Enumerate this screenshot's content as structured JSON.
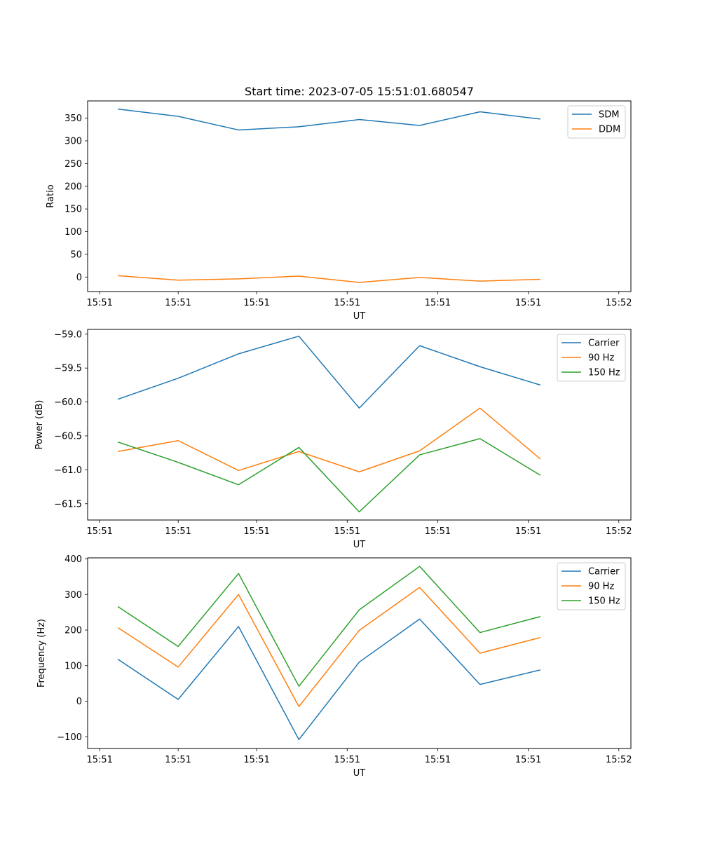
{
  "chart_data": [
    {
      "type": "line",
      "title": "Start time: 2023-07-05 15:51:01.680547",
      "xlabel": "UT",
      "ylabel": "Ratio",
      "x_index": [
        0,
        1,
        2,
        3,
        4,
        5,
        6,
        7
      ],
      "xlim": [
        -0.5,
        8.5
      ],
      "x_ticks": [
        {
          "pos": -0.3,
          "label": "15:51"
        },
        {
          "pos": 1.0,
          "label": "15:51"
        },
        {
          "pos": 2.3,
          "label": "15:51"
        },
        {
          "pos": 3.8,
          "label": "15:51"
        },
        {
          "pos": 5.3,
          "label": "15:51"
        },
        {
          "pos": 6.8,
          "label": "15:51"
        },
        {
          "pos": 8.3,
          "label": "15:52"
        }
      ],
      "ylim": [
        -32,
        388
      ],
      "y_ticks": [
        0,
        50,
        100,
        150,
        200,
        250,
        300,
        350
      ],
      "legend_position": "top-right",
      "series": [
        {
          "name": "SDM",
          "color": "#1f77b4",
          "values": [
            370,
            354,
            324,
            331,
            347,
            334,
            364,
            348
          ]
        },
        {
          "name": "DDM",
          "color": "#ff7f0e",
          "values": [
            3,
            -7,
            -4,
            2,
            -12,
            -1,
            -9,
            -5
          ]
        }
      ]
    },
    {
      "type": "line",
      "title": "",
      "xlabel": "UT",
      "ylabel": "Power (dB)",
      "x_index": [
        0,
        1,
        2,
        3,
        4,
        5,
        6,
        7
      ],
      "xlim": [
        -0.5,
        8.5
      ],
      "x_ticks": [
        {
          "pos": -0.3,
          "label": "15:51"
        },
        {
          "pos": 1.0,
          "label": "15:51"
        },
        {
          "pos": 2.3,
          "label": "15:51"
        },
        {
          "pos": 3.8,
          "label": "15:51"
        },
        {
          "pos": 5.3,
          "label": "15:51"
        },
        {
          "pos": 6.8,
          "label": "15:51"
        },
        {
          "pos": 8.3,
          "label": "15:52"
        }
      ],
      "ylim": [
        -61.74,
        -58.93
      ],
      "y_ticks": [
        -61.5,
        -61.0,
        -60.5,
        -60.0,
        -59.5,
        -59.0
      ],
      "y_tick_labels": [
        "−61.5",
        "−61.0",
        "−60.5",
        "−60.0",
        "−59.5",
        "−59.0"
      ],
      "legend_position": "top-right",
      "series": [
        {
          "name": "Carrier",
          "color": "#1f77b4",
          "values": [
            -59.96,
            -59.65,
            -59.29,
            -59.03,
            -60.09,
            -59.17,
            -59.48,
            -59.75
          ]
        },
        {
          "name": "90 Hz",
          "color": "#ff7f0e",
          "values": [
            -60.73,
            -60.57,
            -61.01,
            -60.73,
            -61.03,
            -60.72,
            -60.09,
            -60.84
          ]
        },
        {
          "name": "150 Hz",
          "color": "#2ca02c",
          "values": [
            -60.59,
            -60.89,
            -61.22,
            -60.67,
            -61.62,
            -60.78,
            -60.54,
            -61.08
          ]
        }
      ]
    },
    {
      "type": "line",
      "title": "",
      "xlabel": "UT",
      "ylabel": "Frequency (Hz)",
      "x_index": [
        0,
        1,
        2,
        3,
        4,
        5,
        6,
        7
      ],
      "xlim": [
        -0.5,
        8.5
      ],
      "x_ticks": [
        {
          "pos": -0.3,
          "label": "15:51"
        },
        {
          "pos": 1.0,
          "label": "15:51"
        },
        {
          "pos": 2.3,
          "label": "15:51"
        },
        {
          "pos": 3.8,
          "label": "15:51"
        },
        {
          "pos": 5.3,
          "label": "15:51"
        },
        {
          "pos": 6.8,
          "label": "15:51"
        },
        {
          "pos": 8.3,
          "label": "15:52"
        }
      ],
      "ylim": [
        -133,
        403
      ],
      "y_ticks": [
        -100,
        0,
        100,
        200,
        300,
        400
      ],
      "y_tick_labels": [
        "−100",
        "0",
        "100",
        "200",
        "300",
        "400"
      ],
      "legend_position": "top-right",
      "series": [
        {
          "name": "Carrier",
          "color": "#1f77b4",
          "values": [
            118,
            5,
            210,
            -108,
            110,
            231,
            47,
            88
          ]
        },
        {
          "name": "90 Hz",
          "color": "#ff7f0e",
          "values": [
            207,
            96,
            300,
            -15,
            199,
            320,
            135,
            179
          ]
        },
        {
          "name": "150 Hz",
          "color": "#2ca02c",
          "values": [
            266,
            154,
            359,
            42,
            257,
            379,
            193,
            238
          ]
        }
      ]
    }
  ]
}
